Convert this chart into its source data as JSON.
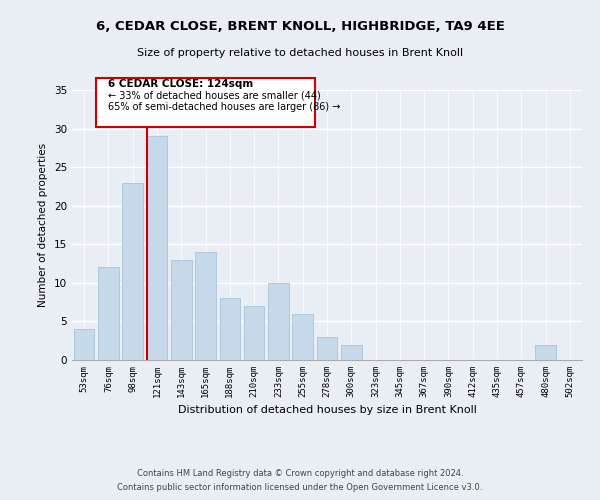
{
  "title": "6, CEDAR CLOSE, BRENT KNOLL, HIGHBRIDGE, TA9 4EE",
  "subtitle": "Size of property relative to detached houses in Brent Knoll",
  "xlabel": "Distribution of detached houses by size in Brent Knoll",
  "ylabel": "Number of detached properties",
  "bar_labels": [
    "53sqm",
    "76sqm",
    "98sqm",
    "121sqm",
    "143sqm",
    "165sqm",
    "188sqm",
    "210sqm",
    "233sqm",
    "255sqm",
    "278sqm",
    "300sqm",
    "323sqm",
    "345sqm",
    "367sqm",
    "390sqm",
    "412sqm",
    "435sqm",
    "457sqm",
    "480sqm",
    "502sqm"
  ],
  "bar_values": [
    4,
    12,
    23,
    29,
    13,
    14,
    8,
    7,
    10,
    6,
    3,
    2,
    0,
    0,
    0,
    0,
    0,
    0,
    0,
    2,
    0
  ],
  "bar_color": "#c5d9ea",
  "bar_edge_color": "#a8c4d8",
  "vline_color": "#cc0000",
  "vline_x_index": 3,
  "annotation_title": "6 CEDAR CLOSE: 124sqm",
  "annotation_line1": "← 33% of detached houses are smaller (44)",
  "annotation_line2": "65% of semi-detached houses are larger (86) →",
  "annotation_box_facecolor": "#ffffff",
  "annotation_box_edgecolor": "#cc0000",
  "ylim": [
    0,
    35
  ],
  "yticks": [
    0,
    5,
    10,
    15,
    20,
    25,
    30,
    35
  ],
  "background_color": "#e8eef4",
  "grid_color": "#ffffff",
  "footer1": "Contains HM Land Registry data © Crown copyright and database right 2024.",
  "footer2": "Contains public sector information licensed under the Open Government Licence v3.0."
}
